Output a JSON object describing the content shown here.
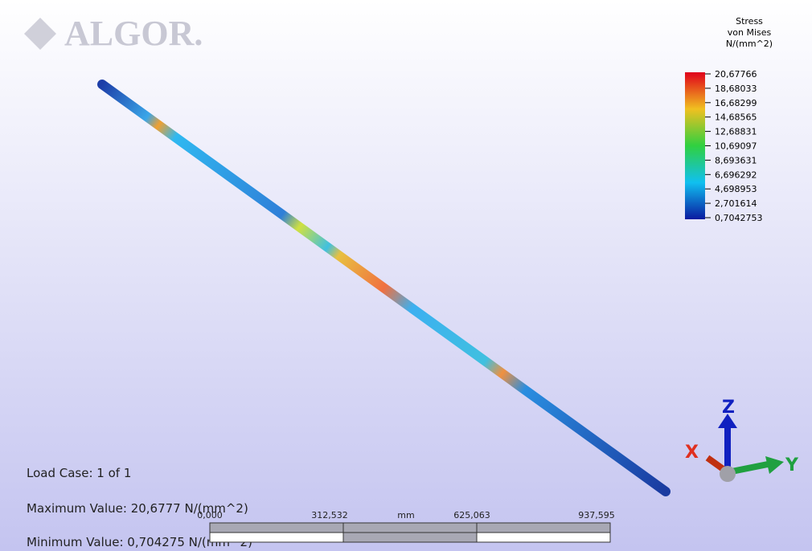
{
  "logo": "ALGOR.",
  "legend": {
    "title": [
      "Stress",
      "von Mises",
      "N/(mm^2)"
    ],
    "labels": [
      "20,67766",
      "18,68033",
      "16,68299",
      "14,68565",
      "12,68831",
      "10,69097",
      "8,693631",
      "6,696292",
      "4,698953",
      "2,701614",
      "0,7042753"
    ]
  },
  "info": {
    "load_case": "Load Case:  1 of 1",
    "maximum": "Maximum Value: 20,6777 N/(mm^2)",
    "minimum": "Minimum Value: 0,704275 N/(mm^2)"
  },
  "scale_bar": {
    "labels": [
      "0,000",
      "312,532",
      "625,063",
      "937,595"
    ],
    "unit": "mm"
  },
  "triad": {
    "z": "Z",
    "x": "X",
    "y": "Y"
  }
}
